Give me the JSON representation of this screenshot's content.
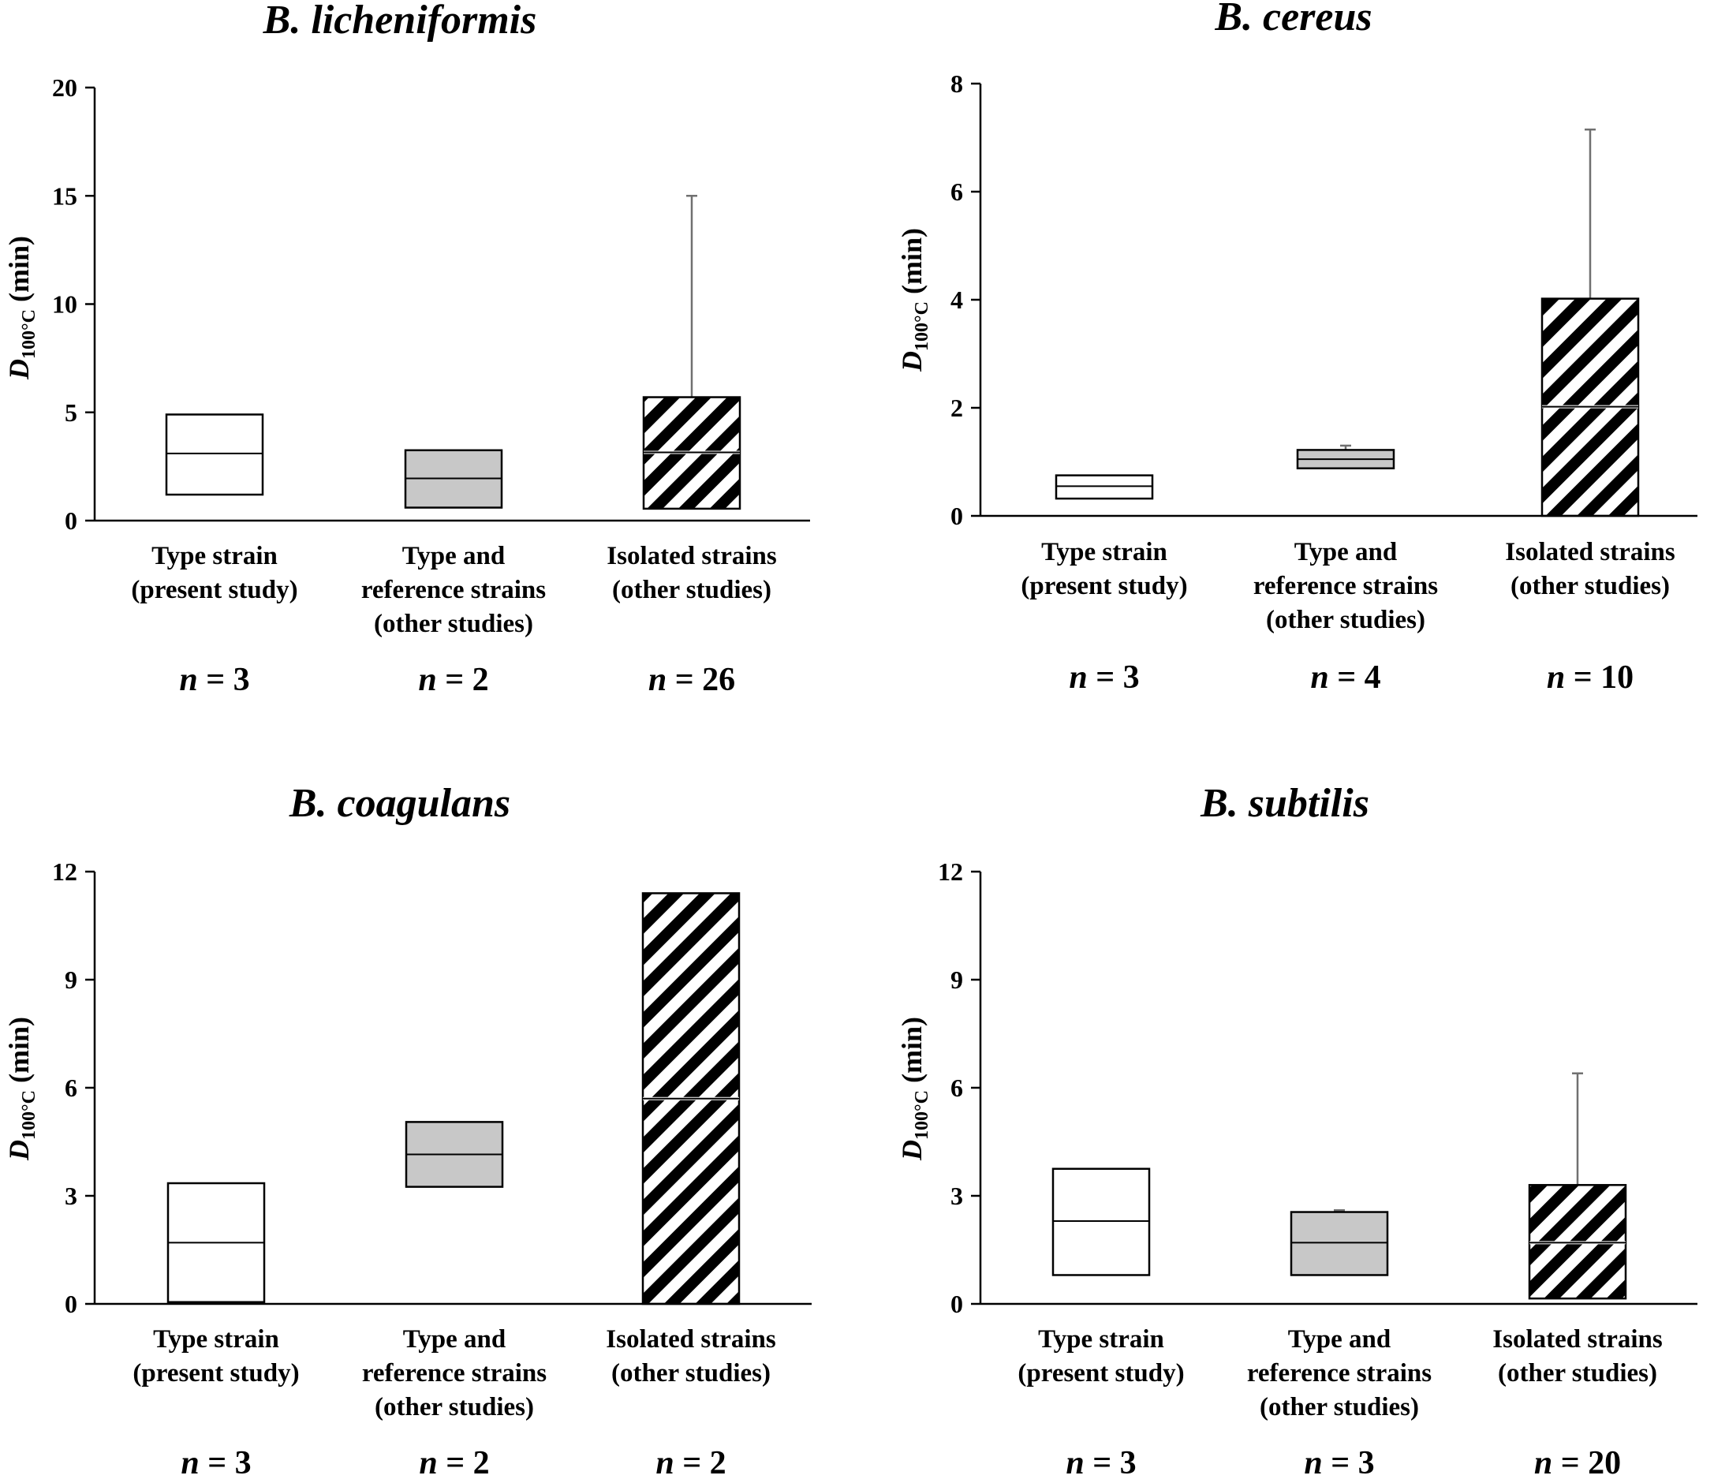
{
  "chart_data": [
    {
      "type": "box",
      "title": "B. licheniformis",
      "ylabel": {
        "symbol": "D",
        "subscript": "100°C",
        "unit": "(min)"
      },
      "ylim": [
        0,
        20
      ],
      "yticks": [
        0,
        5,
        10,
        15,
        20
      ],
      "categories": [
        {
          "lines": [
            "Type strain",
            "(present study)"
          ],
          "n": "3",
          "fill": "white",
          "q1": 1.2,
          "median": 3.1,
          "q3": 4.9
        },
        {
          "lines": [
            "Type and",
            "reference strains",
            "(other studies)"
          ],
          "n": "2",
          "fill": "gray",
          "q1": 0.6,
          "median": 1.95,
          "q3": 3.25
        },
        {
          "lines": [
            "Isolated strains",
            "(other studies)"
          ],
          "n": "26",
          "fill": "hatch",
          "q1": 0.55,
          "median": 3.15,
          "q3": 5.7,
          "whisker_max": 15
        }
      ]
    },
    {
      "type": "box",
      "title": "B. cereus",
      "ylabel": {
        "symbol": "D",
        "subscript": "100°C",
        "unit": "(min)"
      },
      "ylim": [
        0,
        8
      ],
      "yticks": [
        0,
        2,
        4,
        6,
        8
      ],
      "categories": [
        {
          "lines": [
            "Type strain",
            "(present study)"
          ],
          "n": "3",
          "fill": "white",
          "q1": 0.32,
          "median": 0.55,
          "q3": 0.75
        },
        {
          "lines": [
            "Type and",
            "reference strains",
            "(other studies)"
          ],
          "n": "4",
          "fill": "gray",
          "q1": 0.88,
          "median": 1.05,
          "q3": 1.22,
          "whisker_max": 1.3
        },
        {
          "lines": [
            "Isolated strains",
            "(other studies)"
          ],
          "n": "10",
          "fill": "hatch",
          "q1": 0.0,
          "median": 2.02,
          "q3": 4.02,
          "whisker_max": 7.15
        }
      ]
    },
    {
      "type": "box",
      "title": "B. coagulans",
      "ylabel": {
        "symbol": "D",
        "subscript": "100°C",
        "unit": "(min)"
      },
      "ylim": [
        0,
        12
      ],
      "yticks": [
        0,
        3,
        6,
        9,
        12
      ],
      "categories": [
        {
          "lines": [
            "Type strain",
            "(present study)"
          ],
          "n": "3",
          "fill": "white",
          "q1": 0.05,
          "median": 1.7,
          "q3": 3.35
        },
        {
          "lines": [
            "Type and",
            "reference strains",
            "(other studies)"
          ],
          "n": "2",
          "fill": "gray",
          "q1": 3.25,
          "median": 4.15,
          "q3": 5.05
        },
        {
          "lines": [
            "Isolated strains",
            "(other studies)"
          ],
          "n": "2",
          "fill": "hatch",
          "q1": 0.0,
          "median": 5.7,
          "q3": 11.4
        }
      ]
    },
    {
      "type": "box",
      "title": "B. subtilis",
      "ylabel": {
        "symbol": "D",
        "subscript": "100°C",
        "unit": "(min)"
      },
      "ylim": [
        0,
        12
      ],
      "yticks": [
        0,
        3,
        6,
        9,
        12
      ],
      "categories": [
        {
          "lines": [
            "Type strain",
            "(present study)"
          ],
          "n": "3",
          "fill": "white",
          "q1": 0.8,
          "median": 2.3,
          "q3": 3.75
        },
        {
          "lines": [
            "Type and",
            "reference strains",
            "(other studies)"
          ],
          "n": "3",
          "fill": "gray",
          "q1": 0.8,
          "median": 1.7,
          "q3": 2.55,
          "whisker_max": 2.6
        },
        {
          "lines": [
            "Isolated strains",
            "(other studies)"
          ],
          "n": "20",
          "fill": "hatch",
          "q1": 0.15,
          "median": 1.7,
          "q3": 3.3,
          "whisker_max": 6.4
        }
      ]
    }
  ],
  "colors": {
    "gray_fill": "#c8c8c8",
    "whisker": "#707070",
    "axis": "#000000"
  },
  "n_prefix": "n"
}
